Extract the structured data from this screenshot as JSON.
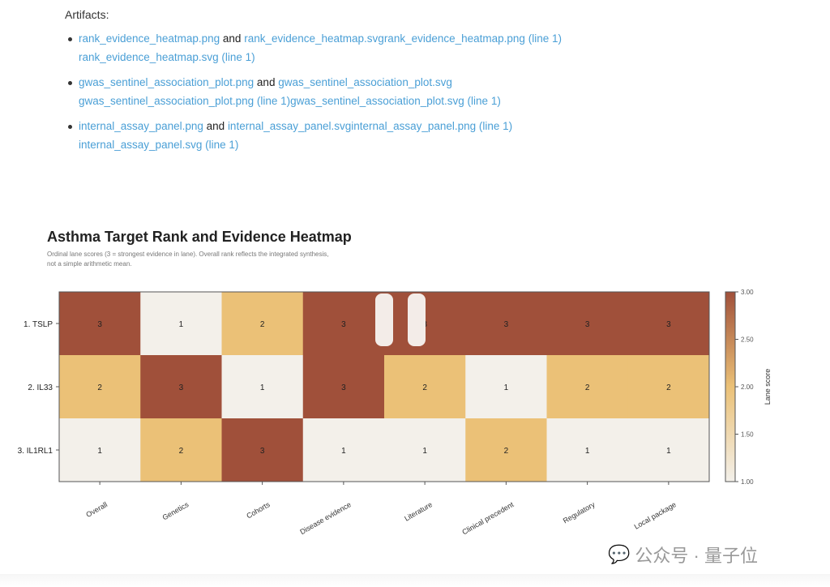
{
  "artifacts": {
    "heading": "Artifacts:",
    "items": [
      {
        "a": "rank_evidence_heatmap.png",
        "and": "and",
        "b": "rank_evidence_heatmap.svgrank_evidence_heatmap.png (line 1)",
        "c": "rank_evidence_heatmap.svg (line 1)"
      },
      {
        "a": "gwas_sentinel_association_plot.png",
        "and": "and",
        "b": "gwas_sentinel_association_plot.svg",
        "c": "gwas_sentinel_association_plot.png (line 1)gwas_sentinel_association_plot.svg (line 1)"
      },
      {
        "a": "internal_assay_panel.png",
        "and": "and",
        "b": "internal_assay_panel.svginternal_assay_panel.png (line 1)",
        "c": "internal_assay_panel.svg (line 1)"
      }
    ]
  },
  "chart_data": {
    "type": "heatmap",
    "title": "Asthma Target Rank and Evidence Heatmap",
    "subtitle_1": "Ordinal lane scores (3 = strongest evidence in lane). Overall rank reflects the integrated synthesis,",
    "subtitle_2": "not a simple arithmetic mean.",
    "rows": [
      "1. TSLP",
      "2. IL33",
      "3. IL1RL1"
    ],
    "columns": [
      "Overall",
      "Genetics",
      "Cohorts",
      "Disease evidence",
      "Literature",
      "Clinical precedent",
      "Regulatory",
      "Local package"
    ],
    "values": [
      [
        3,
        1,
        2,
        3,
        3,
        3,
        3,
        3
      ],
      [
        2,
        3,
        1,
        3,
        2,
        1,
        2,
        2
      ],
      [
        1,
        2,
        3,
        1,
        1,
        2,
        1,
        1
      ]
    ],
    "colorbar": {
      "label": "Lane score",
      "range": [
        1,
        3
      ],
      "ticks": [
        "1.00",
        "1.50",
        "2.00",
        "2.50",
        "3.00"
      ]
    },
    "colors": {
      "low": "#f3f0ea",
      "mid": "#ebc177",
      "high": "#a0503a"
    }
  },
  "watermark": "公众号 · 量子位"
}
